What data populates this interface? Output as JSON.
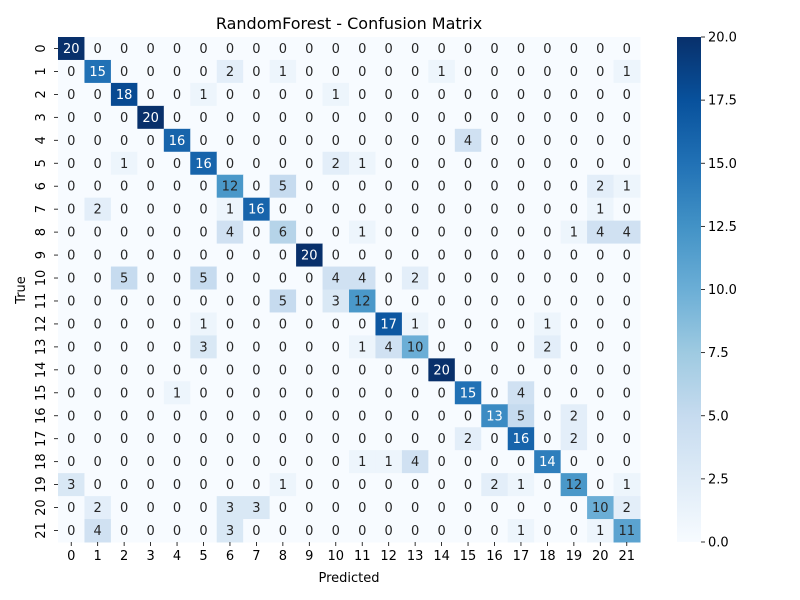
{
  "chart_data": {
    "type": "heatmap",
    "title": "RandomForest - Confusion Matrix",
    "xlabel": "Predicted",
    "ylabel": "True",
    "x_categories": [
      "0",
      "1",
      "2",
      "3",
      "4",
      "5",
      "6",
      "7",
      "8",
      "9",
      "10",
      "11",
      "12",
      "13",
      "14",
      "15",
      "16",
      "17",
      "18",
      "19",
      "20",
      "21"
    ],
    "y_categories": [
      "0",
      "1",
      "2",
      "3",
      "4",
      "5",
      "6",
      "7",
      "8",
      "9",
      "10",
      "11",
      "12",
      "13",
      "14",
      "15",
      "16",
      "17",
      "18",
      "19",
      "20",
      "21"
    ],
    "values": [
      [
        20,
        0,
        0,
        0,
        0,
        0,
        0,
        0,
        0,
        0,
        0,
        0,
        0,
        0,
        0,
        0,
        0,
        0,
        0,
        0,
        0,
        0
      ],
      [
        0,
        15,
        0,
        0,
        0,
        0,
        2,
        0,
        1,
        0,
        0,
        0,
        0,
        0,
        1,
        0,
        0,
        0,
        0,
        0,
        0,
        1
      ],
      [
        0,
        0,
        18,
        0,
        0,
        1,
        0,
        0,
        0,
        0,
        1,
        0,
        0,
        0,
        0,
        0,
        0,
        0,
        0,
        0,
        0,
        0
      ],
      [
        0,
        0,
        0,
        20,
        0,
        0,
        0,
        0,
        0,
        0,
        0,
        0,
        0,
        0,
        0,
        0,
        0,
        0,
        0,
        0,
        0,
        0
      ],
      [
        0,
        0,
        0,
        0,
        16,
        0,
        0,
        0,
        0,
        0,
        0,
        0,
        0,
        0,
        0,
        4,
        0,
        0,
        0,
        0,
        0,
        0
      ],
      [
        0,
        0,
        1,
        0,
        0,
        16,
        0,
        0,
        0,
        0,
        2,
        1,
        0,
        0,
        0,
        0,
        0,
        0,
        0,
        0,
        0,
        0
      ],
      [
        0,
        0,
        0,
        0,
        0,
        0,
        12,
        0,
        5,
        0,
        0,
        0,
        0,
        0,
        0,
        0,
        0,
        0,
        0,
        0,
        2,
        1
      ],
      [
        0,
        2,
        0,
        0,
        0,
        0,
        1,
        16,
        0,
        0,
        0,
        0,
        0,
        0,
        0,
        0,
        0,
        0,
        0,
        0,
        1,
        0
      ],
      [
        0,
        0,
        0,
        0,
        0,
        0,
        4,
        0,
        6,
        0,
        0,
        1,
        0,
        0,
        0,
        0,
        0,
        0,
        0,
        1,
        4,
        4
      ],
      [
        0,
        0,
        0,
        0,
        0,
        0,
        0,
        0,
        0,
        20,
        0,
        0,
        0,
        0,
        0,
        0,
        0,
        0,
        0,
        0,
        0,
        0
      ],
      [
        0,
        0,
        5,
        0,
        0,
        5,
        0,
        0,
        0,
        0,
        4,
        4,
        0,
        2,
        0,
        0,
        0,
        0,
        0,
        0,
        0,
        0
      ],
      [
        0,
        0,
        0,
        0,
        0,
        0,
        0,
        0,
        5,
        0,
        3,
        12,
        0,
        0,
        0,
        0,
        0,
        0,
        0,
        0,
        0,
        0
      ],
      [
        0,
        0,
        0,
        0,
        0,
        1,
        0,
        0,
        0,
        0,
        0,
        0,
        17,
        1,
        0,
        0,
        0,
        0,
        1,
        0,
        0,
        0
      ],
      [
        0,
        0,
        0,
        0,
        0,
        3,
        0,
        0,
        0,
        0,
        0,
        1,
        4,
        10,
        0,
        0,
        0,
        0,
        2,
        0,
        0,
        0
      ],
      [
        0,
        0,
        0,
        0,
        0,
        0,
        0,
        0,
        0,
        0,
        0,
        0,
        0,
        0,
        20,
        0,
        0,
        0,
        0,
        0,
        0,
        0
      ],
      [
        0,
        0,
        0,
        0,
        1,
        0,
        0,
        0,
        0,
        0,
        0,
        0,
        0,
        0,
        0,
        15,
        0,
        4,
        0,
        0,
        0,
        0
      ],
      [
        0,
        0,
        0,
        0,
        0,
        0,
        0,
        0,
        0,
        0,
        0,
        0,
        0,
        0,
        0,
        0,
        13,
        5,
        0,
        2,
        0,
        0
      ],
      [
        0,
        0,
        0,
        0,
        0,
        0,
        0,
        0,
        0,
        0,
        0,
        0,
        0,
        0,
        0,
        2,
        0,
        16,
        0,
        2,
        0,
        0
      ],
      [
        0,
        0,
        0,
        0,
        0,
        0,
        0,
        0,
        0,
        0,
        0,
        1,
        1,
        4,
        0,
        0,
        0,
        0,
        14,
        0,
        0,
        0
      ],
      [
        3,
        0,
        0,
        0,
        0,
        0,
        0,
        0,
        1,
        0,
        0,
        0,
        0,
        0,
        0,
        0,
        2,
        1,
        0,
        12,
        0,
        1
      ],
      [
        0,
        2,
        0,
        0,
        0,
        0,
        3,
        3,
        0,
        0,
        0,
        0,
        0,
        0,
        0,
        0,
        0,
        0,
        0,
        0,
        10,
        2
      ],
      [
        0,
        4,
        0,
        0,
        0,
        0,
        3,
        0,
        0,
        0,
        0,
        0,
        0,
        0,
        0,
        0,
        0,
        1,
        0,
        0,
        1,
        11
      ]
    ],
    "colormap": "Blues",
    "colorbar": {
      "range": [
        0,
        20
      ],
      "ticks": [
        "0.0",
        "2.5",
        "5.0",
        "7.5",
        "10.0",
        "12.5",
        "15.0",
        "17.5",
        "20.0"
      ]
    },
    "annotated": true,
    "grid": false
  }
}
